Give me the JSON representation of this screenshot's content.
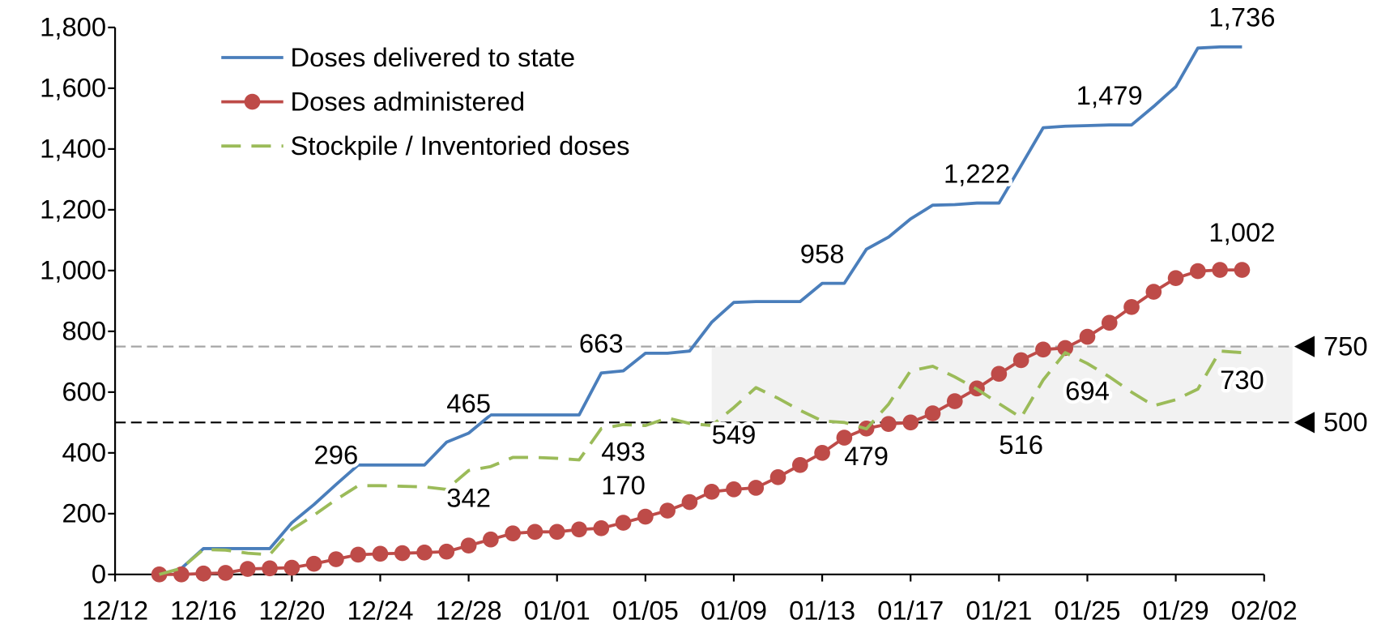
{
  "chart_data": {
    "type": "line",
    "categories": [
      "12/12",
      null,
      null,
      null,
      "12/16",
      null,
      null,
      null,
      "12/20",
      null,
      null,
      null,
      "12/24",
      null,
      null,
      null,
      "12/28",
      null,
      null,
      null,
      "01/01",
      null,
      null,
      null,
      "01/05",
      null,
      null,
      null,
      "01/09",
      null,
      null,
      null,
      "01/13",
      null,
      null,
      null,
      "01/17",
      null,
      null,
      null,
      "01/21",
      null,
      null,
      null,
      "01/25",
      null,
      null,
      null,
      "01/29",
      null,
      null,
      null,
      "02/02"
    ],
    "series": [
      {
        "name": "Doses delivered to state",
        "color": "#4a7ebb",
        "style": "solid",
        "markers": false,
        "values": [
          null,
          null,
          0,
          20,
          85,
          85,
          85,
          85,
          170,
          230,
          296,
          360,
          360,
          360,
          360,
          435,
          465,
          525,
          525,
          525,
          525,
          525,
          663,
          670,
          728,
          728,
          735,
          830,
          895,
          898,
          898,
          898,
          958,
          958,
          1070,
          1110,
          1170,
          1215,
          1217,
          1222,
          1222,
          1345,
          1470,
          1475,
          1477,
          1479,
          1479,
          1540,
          1605,
          1732,
          1736,
          1736,
          null
        ],
        "value_labels": [
          null,
          null,
          null,
          null,
          null,
          null,
          null,
          null,
          null,
          null,
          "296",
          null,
          null,
          null,
          null,
          null,
          "465",
          null,
          null,
          null,
          null,
          null,
          "663",
          null,
          null,
          null,
          null,
          null,
          null,
          null,
          null,
          null,
          "958",
          null,
          null,
          null,
          null,
          null,
          null,
          "1,222",
          null,
          null,
          null,
          null,
          null,
          "1,479",
          null,
          null,
          null,
          null,
          null,
          "1,736",
          null
        ]
      },
      {
        "name": "Doses administered",
        "color": "#be4b48",
        "style": "solid",
        "markers": true,
        "values": [
          null,
          null,
          0,
          0,
          3,
          5,
          18,
          20,
          22,
          35,
          50,
          65,
          68,
          70,
          72,
          75,
          95,
          115,
          135,
          140,
          140,
          148,
          152,
          170,
          190,
          210,
          238,
          272,
          280,
          285,
          320,
          360,
          400,
          450,
          480,
          495,
          500,
          530,
          570,
          612,
          660,
          705,
          740,
          745,
          782,
          828,
          880,
          930,
          975,
          998,
          1002,
          1002,
          null
        ],
        "value_labels": [
          null,
          null,
          null,
          null,
          null,
          null,
          null,
          null,
          null,
          null,
          null,
          null,
          null,
          null,
          null,
          null,
          null,
          null,
          null,
          null,
          null,
          null,
          null,
          "170",
          null,
          null,
          null,
          null,
          null,
          null,
          null,
          null,
          null,
          null,
          null,
          null,
          null,
          null,
          null,
          null,
          null,
          null,
          null,
          null,
          null,
          null,
          null,
          null,
          null,
          null,
          null,
          "1,002",
          null
        ]
      },
      {
        "name": "Stockpile / Inventoried doses",
        "color": "#9bbb59",
        "style": "dashed",
        "markers": false,
        "values": [
          null,
          null,
          0,
          20,
          82,
          80,
          70,
          65,
          148,
          195,
          246,
          292,
          292,
          290,
          288,
          280,
          342,
          355,
          385,
          385,
          382,
          377,
          480,
          493,
          490,
          515,
          497,
          490,
          549,
          615,
          580,
          540,
          505,
          500,
          479,
          560,
          670,
          685,
          650,
          610,
          562,
          516,
          640,
          730,
          694,
          650,
          600,
          555,
          575,
          610,
          735,
          730,
          null
        ],
        "value_labels": [
          null,
          null,
          null,
          null,
          null,
          null,
          null,
          null,
          null,
          null,
          null,
          null,
          null,
          null,
          null,
          null,
          "342",
          null,
          null,
          null,
          null,
          null,
          null,
          "493",
          null,
          null,
          null,
          null,
          "549",
          null,
          null,
          null,
          null,
          null,
          "479",
          null,
          null,
          null,
          null,
          null,
          null,
          "516",
          null,
          null,
          "694",
          null,
          null,
          null,
          null,
          null,
          null,
          "730",
          null
        ]
      }
    ],
    "ylim": [
      0,
      1800
    ],
    "yticks": [
      0,
      200,
      400,
      600,
      800,
      {
        "value": 1000,
        "label": "1,000"
      },
      {
        "value": 1200,
        "label": "1,200"
      },
      {
        "value": 1400,
        "label": "1,400"
      },
      {
        "value": 1600,
        "label": "1,600"
      },
      {
        "value": 1800,
        "label": "1,800"
      }
    ],
    "grid": false,
    "legend": "top-left",
    "reference_lines": [
      {
        "value": 750,
        "color": "#a6a6a6"
      },
      {
        "value": 500,
        "color": "#000000"
      }
    ],
    "shaded_range": {
      "y": [
        500,
        750
      ],
      "x_start": "01/08",
      "color": "#f2f2f2"
    }
  }
}
